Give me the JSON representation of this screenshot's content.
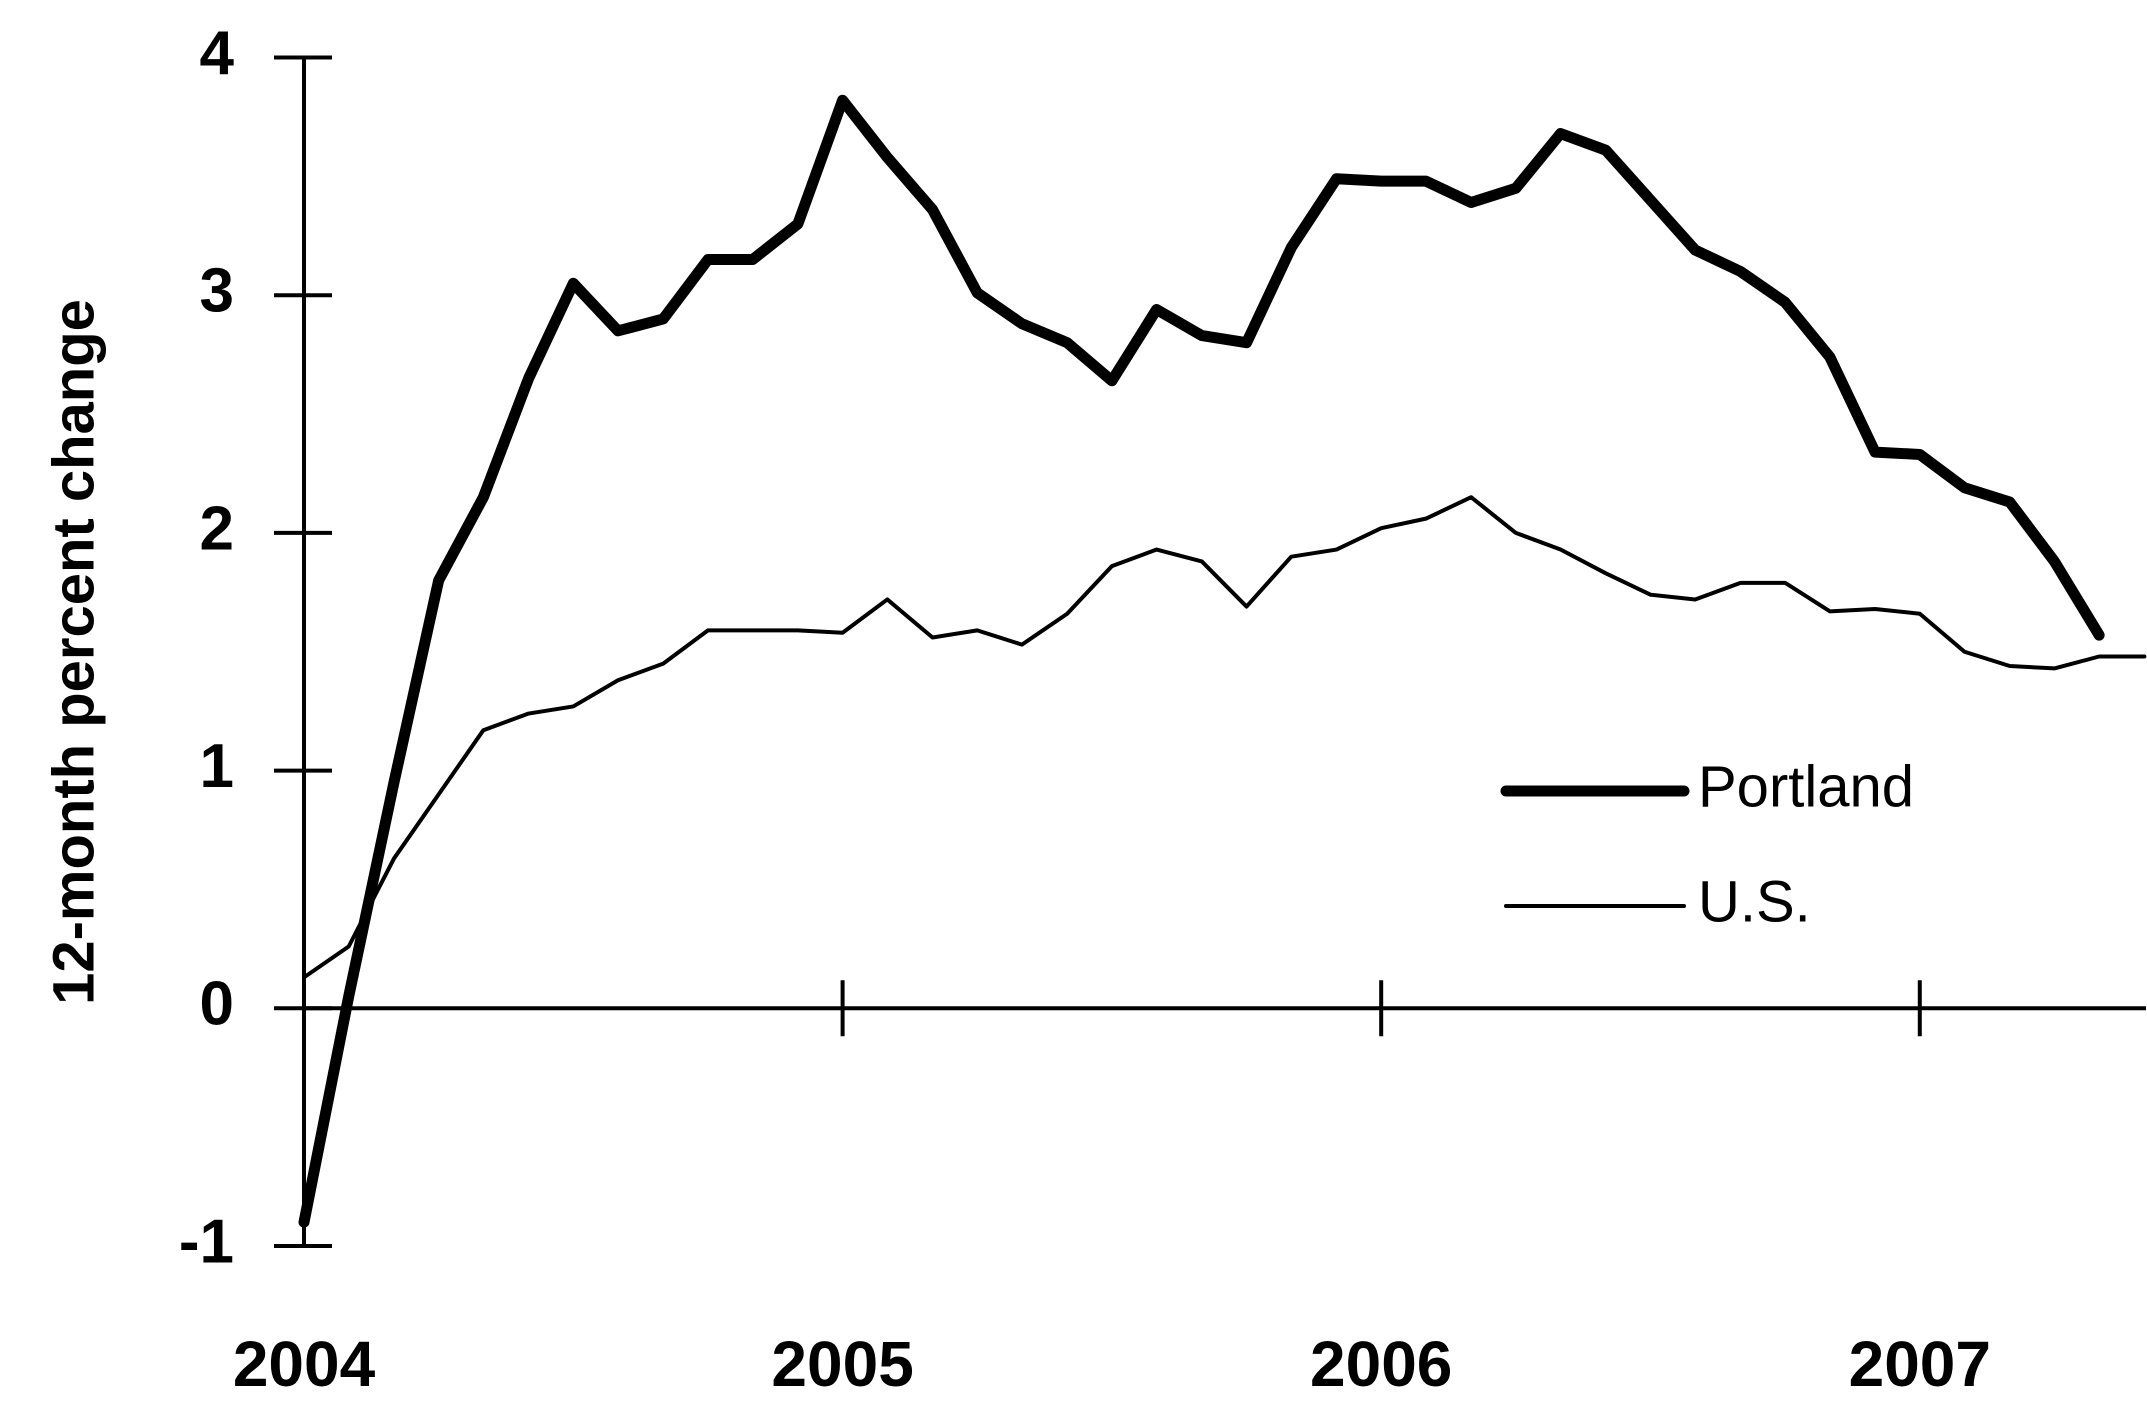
{
  "chart_data": {
    "type": "line",
    "y_label": "12-month percent change",
    "x": [
      2004,
      2004.083,
      2004.167,
      2004.25,
      2004.333,
      2004.417,
      2004.5,
      2004.583,
      2004.667,
      2004.75,
      2004.833,
      2004.917,
      2005,
      2005.083,
      2005.167,
      2005.25,
      2005.333,
      2005.417,
      2005.5,
      2005.583,
      2005.667,
      2005.75,
      2005.833,
      2005.917,
      2006,
      2006.083,
      2006.167,
      2006.25,
      2006.333,
      2006.417,
      2006.5,
      2006.583,
      2006.667,
      2006.75,
      2006.833,
      2006.917,
      2007,
      2007.083,
      2007.167,
      2007.25,
      2007.333,
      2007.417
    ],
    "series": [
      {
        "name": "Portland",
        "color": "#000000",
        "values": [
          -0.9,
          0.05,
          0.95,
          1.8,
          2.15,
          2.65,
          3.05,
          2.85,
          2.9,
          3.15,
          3.15,
          3.3,
          3.82,
          3.58,
          3.36,
          3.01,
          2.88,
          2.8,
          2.64,
          2.94,
          2.83,
          2.8,
          3.2,
          3.49,
          3.48,
          3.48,
          3.39,
          3.45,
          3.68,
          3.61,
          3.4,
          3.19,
          3.1,
          2.97,
          2.74,
          2.34,
          2.33,
          2.19,
          2.13,
          1.88,
          1.57,
          null
        ]
      },
      {
        "name": "U.S.",
        "color": "#000000",
        "values": [
          0.13,
          0.26,
          0.63,
          0.9,
          1.17,
          1.24,
          1.27,
          1.38,
          1.45,
          1.59,
          1.59,
          1.59,
          1.58,
          1.72,
          1.56,
          1.59,
          1.53,
          1.66,
          1.86,
          1.93,
          1.88,
          1.69,
          1.9,
          1.93,
          2.02,
          2.06,
          2.15,
          2.0,
          1.93,
          1.83,
          1.74,
          1.72,
          1.79,
          1.79,
          1.67,
          1.68,
          1.66,
          1.5,
          1.44,
          1.43,
          1.48,
          1.48
        ]
      }
    ],
    "xlim": [
      2004,
      2007.42
    ],
    "xticks": [
      2004,
      2005,
      2006,
      2007
    ],
    "ylim": [
      -1,
      4
    ],
    "yticks": [
      -1,
      0,
      1,
      2,
      3,
      4
    ],
    "legend": "lower right"
  }
}
